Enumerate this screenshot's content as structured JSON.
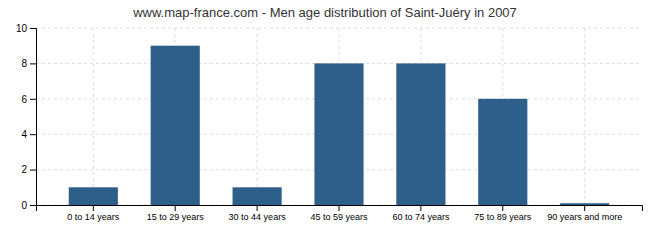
{
  "chart_data": {
    "type": "bar",
    "title": "www.map-france.com - Men age distribution of Saint-Juéry in 2007",
    "categories": [
      "0 to 14 years",
      "15 to 29 years",
      "30 to 44 years",
      "45 to 59 years",
      "60 to 74 years",
      "75 to 89 years",
      "90 years and more"
    ],
    "values": [
      1,
      9,
      1,
      8,
      8,
      6,
      0.1
    ],
    "color": "#2e5f8a",
    "ylim": [
      0,
      10
    ],
    "yticks": [
      0,
      2,
      4,
      6,
      8,
      10
    ],
    "grid": true
  }
}
